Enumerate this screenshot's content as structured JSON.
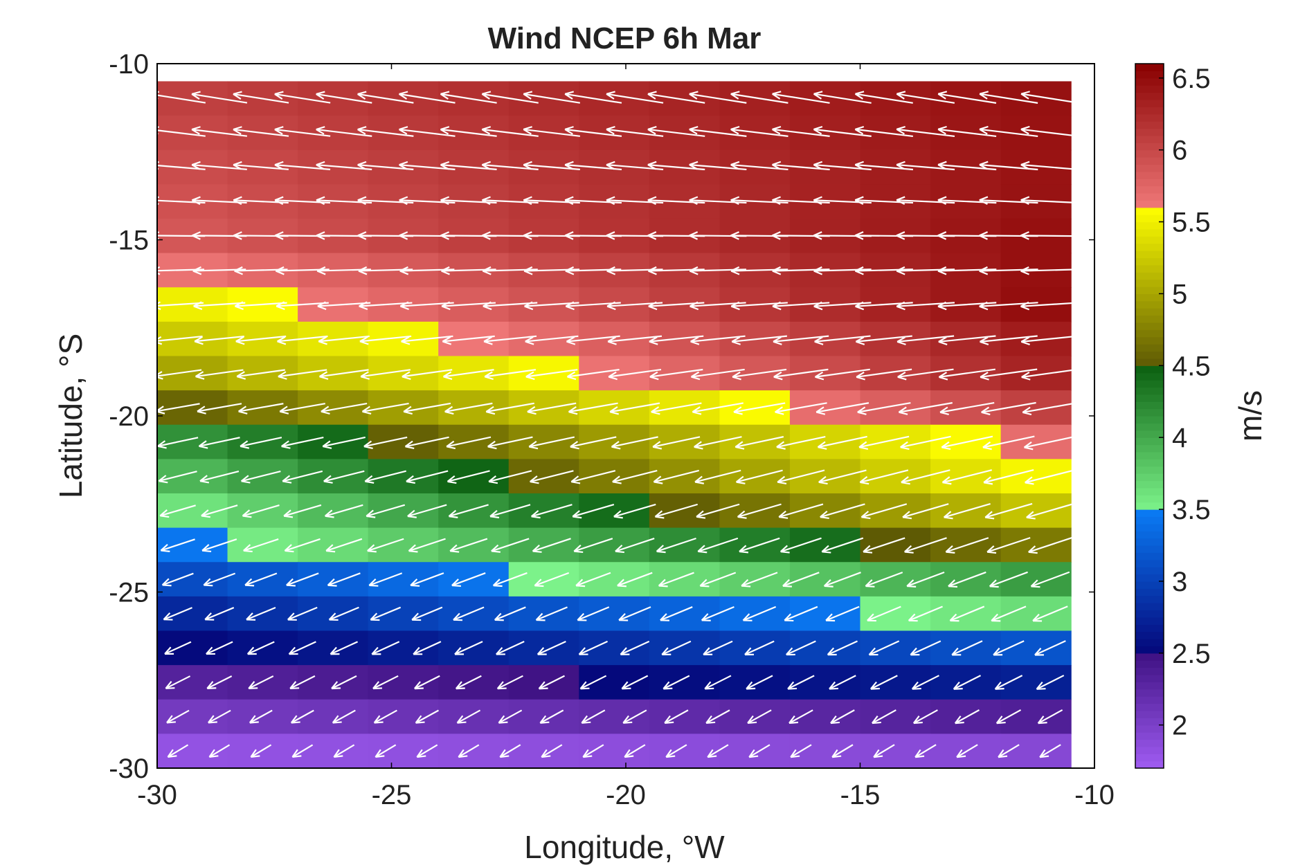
{
  "chart_data": {
    "type": "heatmap",
    "title": "Wind NCEP 6h Mar",
    "xlabel": "Longitude, °W",
    "ylabel": "Latitude, °S",
    "xlim": [
      -30,
      -10
    ],
    "ylim": [
      -30,
      -10
    ],
    "xticks": [
      -30,
      -25,
      -20,
      -15,
      -10
    ],
    "xtick_labels": [
      "-30",
      "-25",
      "-20",
      "-15",
      "-10"
    ],
    "yticks": [
      -10,
      -15,
      -20,
      -25,
      -30
    ],
    "ytick_labels": [
      "-10",
      "-15",
      "-20",
      "-25",
      "-30"
    ],
    "grid": {
      "lon_start": -30,
      "lon_end": -10.5,
      "lat_top": -10.5,
      "lat_bottom": -30,
      "nx": 13,
      "ny": 20
    },
    "speed_field": {
      "description_of_rule": "speed(lon,lat) = base(lat) + slope(lat) * (lon + 30)",
      "rows_from_north": [
        {
          "lat": -11.0,
          "base": 6.05,
          "slope": 0.022
        },
        {
          "lat": -12.0,
          "base": 6.0,
          "slope": 0.024
        },
        {
          "lat": -13.0,
          "base": 5.95,
          "slope": 0.026
        },
        {
          "lat": -14.0,
          "base": 5.9,
          "slope": 0.029
        },
        {
          "lat": -15.0,
          "base": 5.85,
          "slope": 0.033
        },
        {
          "lat": -16.0,
          "base": 5.62,
          "slope": 0.045
        },
        {
          "lat": -17.0,
          "base": 5.45,
          "slope": 0.055
        },
        {
          "lat": -18.0,
          "base": 5.2,
          "slope": 0.062
        },
        {
          "lat": -19.0,
          "base": 4.95,
          "slope": 0.072
        },
        {
          "lat": -20.0,
          "base": 4.52,
          "slope": 0.082
        },
        {
          "lat": -21.0,
          "base": 4.1,
          "slope": 0.085
        },
        {
          "lat": -22.0,
          "base": 3.85,
          "slope": 0.09
        },
        {
          "lat": -23.0,
          "base": 3.55,
          "slope": 0.088
        },
        {
          "lat": -24.0,
          "base": 3.4,
          "slope": 0.07
        },
        {
          "lat": -25.0,
          "base": 3.05,
          "slope": 0.055
        },
        {
          "lat": -26.0,
          "base": 2.75,
          "slope": 0.048
        },
        {
          "lat": -27.0,
          "base": 2.5,
          "slope": 0.035
        },
        {
          "lat": -28.0,
          "base": 2.3,
          "slope": 0.022
        },
        {
          "lat": -29.0,
          "base": 2.05,
          "slope": 0.016
        },
        {
          "lat": -30.0,
          "base": 1.8,
          "slope": 0.006
        }
      ]
    },
    "wind_direction_note": "vectors point toward the west (easterly trade winds); in the south they point toward the southwest",
    "colorbar": {
      "label": "m/s",
      "min": 1.7,
      "max": 6.6,
      "ticks": [
        2,
        2.5,
        3,
        3.5,
        4,
        4.5,
        5,
        5.5,
        6,
        6.5
      ],
      "tick_labels": [
        "2",
        "2.5",
        "3",
        "3.5",
        "4",
        "4.5",
        "5",
        "5.5",
        "6",
        "6.5"
      ],
      "color_bands": [
        {
          "from": 1.7,
          "to": 2.5,
          "low": "#a05cf2",
          "high": "#3e1182"
        },
        {
          "from": 2.5,
          "to": 3.5,
          "low": "#05077a",
          "high": "#0a7cf5"
        },
        {
          "from": 3.5,
          "to": 4.5,
          "low": "#7cf38a",
          "high": "#0b5f10"
        },
        {
          "from": 4.5,
          "to": 5.6,
          "low": "#5e5a04",
          "high": "#ffff00"
        },
        {
          "from": 5.6,
          "to": 6.6,
          "low": "#f07878",
          "high": "#880000"
        }
      ]
    },
    "colors": {
      "arrow": "#ffffff",
      "axis": "#000000",
      "text": "#222222"
    }
  }
}
